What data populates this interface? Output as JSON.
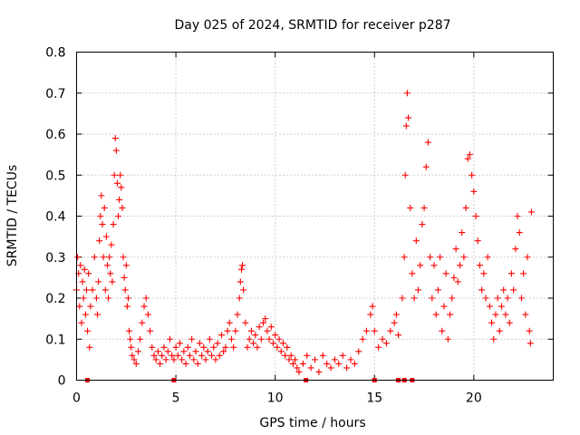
{
  "chart_data": {
    "type": "scatter",
    "title": "Day 025 of 2024, SRMTID for receiver p287",
    "xlabel": "GPS time / hours",
    "ylabel": "SRMTID / TECUs",
    "xlim": [
      0,
      24
    ],
    "ylim": [
      0,
      0.8
    ],
    "xticks": [
      0,
      5,
      10,
      15,
      20
    ],
    "xtick_labels": [
      "0",
      "5",
      "10",
      "15",
      "20"
    ],
    "yticks": [
      0,
      0.1,
      0.2,
      0.3,
      0.4,
      0.5,
      0.6,
      0.7,
      0.8
    ],
    "ytick_labels": [
      "0",
      "0.1",
      "0.2",
      "0.3",
      "0.4",
      "0.5",
      "0.6",
      "0.7",
      "0.8"
    ],
    "grid": true,
    "marker": "plus",
    "color": "#ff0000",
    "series": [
      {
        "name": "SRMTID",
        "points": [
          [
            0.0,
            0.22
          ],
          [
            0.05,
            0.3
          ],
          [
            0.1,
            0.26
          ],
          [
            0.15,
            0.18
          ],
          [
            0.2,
            0.28
          ],
          [
            0.25,
            0.14
          ],
          [
            0.3,
            0.24
          ],
          [
            0.35,
            0.2
          ],
          [
            0.4,
            0.27
          ],
          [
            0.45,
            0.16
          ],
          [
            0.5,
            0.22
          ],
          [
            0.55,
            0.12
          ],
          [
            0.6,
            0.26
          ],
          [
            0.65,
            0.08
          ],
          [
            0.7,
            0.18
          ],
          [
            0.8,
            0.22
          ],
          [
            0.9,
            0.3
          ],
          [
            1.0,
            0.2
          ],
          [
            1.05,
            0.16
          ],
          [
            1.1,
            0.24
          ],
          [
            1.15,
            0.34
          ],
          [
            1.2,
            0.4
          ],
          [
            1.25,
            0.45
          ],
          [
            1.3,
            0.38
          ],
          [
            1.35,
            0.3
          ],
          [
            1.4,
            0.42
          ],
          [
            1.45,
            0.22
          ],
          [
            1.5,
            0.35
          ],
          [
            1.55,
            0.28
          ],
          [
            1.6,
            0.2
          ],
          [
            1.65,
            0.3
          ],
          [
            1.7,
            0.26
          ],
          [
            1.75,
            0.33
          ],
          [
            1.8,
            0.24
          ],
          [
            1.85,
            0.38
          ],
          [
            1.9,
            0.5
          ],
          [
            1.95,
            0.59
          ],
          [
            2.0,
            0.56
          ],
          [
            2.05,
            0.48
          ],
          [
            2.1,
            0.4
          ],
          [
            2.15,
            0.44
          ],
          [
            2.2,
            0.5
          ],
          [
            2.25,
            0.47
          ],
          [
            2.3,
            0.42
          ],
          [
            2.35,
            0.3
          ],
          [
            2.4,
            0.25
          ],
          [
            2.45,
            0.22
          ],
          [
            2.5,
            0.28
          ],
          [
            2.55,
            0.18
          ],
          [
            2.6,
            0.2
          ],
          [
            2.65,
            0.12
          ],
          [
            2.7,
            0.1
          ],
          [
            2.75,
            0.08
          ],
          [
            2.8,
            0.06
          ],
          [
            2.9,
            0.05
          ],
          [
            3.0,
            0.04
          ],
          [
            3.1,
            0.07
          ],
          [
            3.2,
            0.1
          ],
          [
            3.3,
            0.14
          ],
          [
            3.4,
            0.18
          ],
          [
            3.5,
            0.2
          ],
          [
            3.6,
            0.16
          ],
          [
            3.7,
            0.12
          ],
          [
            3.8,
            0.08
          ],
          [
            3.9,
            0.06
          ],
          [
            4.0,
            0.05
          ],
          [
            4.1,
            0.07
          ],
          [
            4.2,
            0.04
          ],
          [
            4.3,
            0.06
          ],
          [
            4.4,
            0.08
          ],
          [
            4.5,
            0.05
          ],
          [
            4.6,
            0.07
          ],
          [
            4.7,
            0.1
          ],
          [
            4.8,
            0.06
          ],
          [
            4.9,
            0.05
          ],
          [
            5.0,
            0.08
          ],
          [
            5.1,
            0.06
          ],
          [
            5.2,
            0.09
          ],
          [
            5.3,
            0.05
          ],
          [
            5.4,
            0.07
          ],
          [
            5.5,
            0.04
          ],
          [
            5.6,
            0.08
          ],
          [
            5.7,
            0.06
          ],
          [
            5.8,
            0.1
          ],
          [
            5.9,
            0.05
          ],
          [
            6.0,
            0.07
          ],
          [
            6.1,
            0.04
          ],
          [
            6.2,
            0.09
          ],
          [
            6.3,
            0.06
          ],
          [
            6.4,
            0.08
          ],
          [
            6.5,
            0.05
          ],
          [
            6.6,
            0.07
          ],
          [
            6.7,
            0.1
          ],
          [
            6.8,
            0.06
          ],
          [
            6.9,
            0.08
          ],
          [
            7.0,
            0.05
          ],
          [
            7.1,
            0.09
          ],
          [
            7.2,
            0.06
          ],
          [
            7.3,
            0.11
          ],
          [
            7.4,
            0.07
          ],
          [
            7.5,
            0.08
          ],
          [
            7.6,
            0.12
          ],
          [
            7.7,
            0.14
          ],
          [
            7.8,
            0.1
          ],
          [
            7.9,
            0.08
          ],
          [
            8.0,
            0.12
          ],
          [
            8.1,
            0.16
          ],
          [
            8.2,
            0.2
          ],
          [
            8.25,
            0.24
          ],
          [
            8.3,
            0.27
          ],
          [
            8.35,
            0.28
          ],
          [
            8.4,
            0.22
          ],
          [
            8.5,
            0.14
          ],
          [
            8.6,
            0.08
          ],
          [
            8.7,
            0.1
          ],
          [
            8.8,
            0.12
          ],
          [
            8.9,
            0.09
          ],
          [
            9.0,
            0.11
          ],
          [
            9.1,
            0.08
          ],
          [
            9.2,
            0.13
          ],
          [
            9.3,
            0.1
          ],
          [
            9.4,
            0.14
          ],
          [
            9.5,
            0.15
          ],
          [
            9.6,
            0.12
          ],
          [
            9.7,
            0.1
          ],
          [
            9.8,
            0.13
          ],
          [
            9.9,
            0.09
          ],
          [
            10.0,
            0.11
          ],
          [
            10.1,
            0.08
          ],
          [
            10.2,
            0.1
          ],
          [
            10.3,
            0.07
          ],
          [
            10.4,
            0.09
          ],
          [
            10.5,
            0.06
          ],
          [
            10.6,
            0.08
          ],
          [
            10.7,
            0.05
          ],
          [
            10.8,
            0.06
          ],
          [
            10.9,
            0.04
          ],
          [
            11.0,
            0.05
          ],
          [
            11.1,
            0.03
          ],
          [
            11.2,
            0.02
          ],
          [
            11.4,
            0.04
          ],
          [
            11.6,
            0.06
          ],
          [
            11.8,
            0.03
          ],
          [
            12.0,
            0.05
          ],
          [
            12.2,
            0.02
          ],
          [
            12.4,
            0.06
          ],
          [
            12.6,
            0.04
          ],
          [
            12.8,
            0.03
          ],
          [
            13.0,
            0.05
          ],
          [
            13.2,
            0.04
          ],
          [
            13.4,
            0.06
          ],
          [
            13.6,
            0.03
          ],
          [
            13.8,
            0.05
          ],
          [
            14.0,
            0.04
          ],
          [
            14.2,
            0.07
          ],
          [
            14.4,
            0.1
          ],
          [
            14.6,
            0.12
          ],
          [
            14.8,
            0.16
          ],
          [
            14.9,
            0.18
          ],
          [
            15.0,
            0.12
          ],
          [
            15.2,
            0.08
          ],
          [
            15.4,
            0.1
          ],
          [
            15.6,
            0.09
          ],
          [
            15.8,
            0.12
          ],
          [
            16.0,
            0.14
          ],
          [
            16.1,
            0.16
          ],
          [
            16.2,
            0.11
          ],
          [
            16.4,
            0.2
          ],
          [
            16.5,
            0.3
          ],
          [
            16.55,
            0.5
          ],
          [
            16.6,
            0.62
          ],
          [
            16.65,
            0.7
          ],
          [
            16.7,
            0.64
          ],
          [
            16.8,
            0.42
          ],
          [
            16.9,
            0.26
          ],
          [
            17.0,
            0.2
          ],
          [
            17.1,
            0.34
          ],
          [
            17.2,
            0.22
          ],
          [
            17.3,
            0.28
          ],
          [
            17.4,
            0.38
          ],
          [
            17.5,
            0.42
          ],
          [
            17.6,
            0.52
          ],
          [
            17.7,
            0.58
          ],
          [
            17.8,
            0.3
          ],
          [
            17.9,
            0.2
          ],
          [
            18.0,
            0.28
          ],
          [
            18.1,
            0.16
          ],
          [
            18.2,
            0.22
          ],
          [
            18.3,
            0.3
          ],
          [
            18.4,
            0.12
          ],
          [
            18.5,
            0.18
          ],
          [
            18.6,
            0.26
          ],
          [
            18.7,
            0.1
          ],
          [
            18.8,
            0.16
          ],
          [
            18.9,
            0.2
          ],
          [
            19.0,
            0.25
          ],
          [
            19.1,
            0.32
          ],
          [
            19.2,
            0.24
          ],
          [
            19.3,
            0.28
          ],
          [
            19.4,
            0.36
          ],
          [
            19.5,
            0.3
          ],
          [
            19.6,
            0.42
          ],
          [
            19.7,
            0.54
          ],
          [
            19.8,
            0.55
          ],
          [
            19.9,
            0.5
          ],
          [
            20.0,
            0.46
          ],
          [
            20.1,
            0.4
          ],
          [
            20.2,
            0.34
          ],
          [
            20.3,
            0.28
          ],
          [
            20.4,
            0.22
          ],
          [
            20.5,
            0.26
          ],
          [
            20.6,
            0.2
          ],
          [
            20.7,
            0.3
          ],
          [
            20.8,
            0.18
          ],
          [
            20.9,
            0.14
          ],
          [
            21.0,
            0.1
          ],
          [
            21.1,
            0.16
          ],
          [
            21.2,
            0.2
          ],
          [
            21.3,
            0.12
          ],
          [
            21.4,
            0.18
          ],
          [
            21.5,
            0.22
          ],
          [
            21.6,
            0.16
          ],
          [
            21.7,
            0.2
          ],
          [
            21.8,
            0.14
          ],
          [
            21.9,
            0.26
          ],
          [
            22.0,
            0.22
          ],
          [
            22.1,
            0.32
          ],
          [
            22.2,
            0.4
          ],
          [
            22.3,
            0.36
          ],
          [
            22.4,
            0.2
          ],
          [
            22.5,
            0.26
          ],
          [
            22.6,
            0.16
          ],
          [
            22.7,
            0.3
          ],
          [
            22.8,
            0.12
          ],
          [
            22.85,
            0.09
          ],
          [
            22.9,
            0.41
          ]
        ]
      }
    ],
    "xaxis_marks": [
      0.55,
      4.9,
      11.55,
      15.0,
      16.2,
      16.5,
      16.9
    ]
  }
}
